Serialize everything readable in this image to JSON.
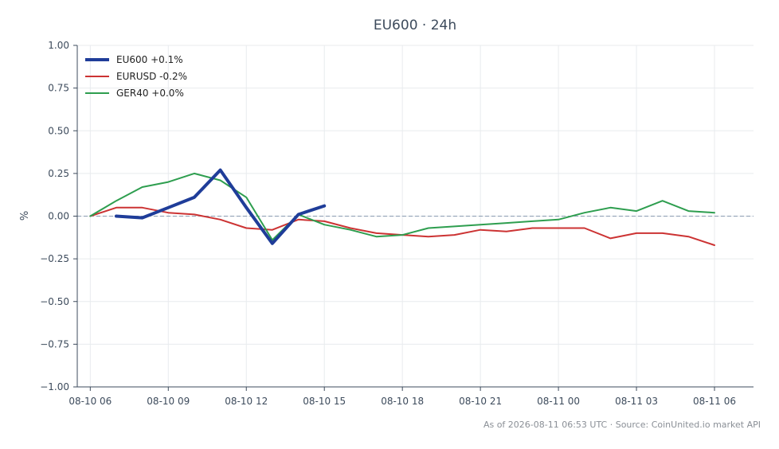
{
  "chart_data": {
    "type": "line",
    "title": "EU600 · 24h",
    "ylabel": "%",
    "xlabel": "",
    "ylim": [
      -1.0,
      1.0
    ],
    "yticks": [
      "1.00",
      "0.75",
      "0.50",
      "0.25",
      "0.00",
      "−0.25",
      "−0.50",
      "−0.75",
      "−1.00"
    ],
    "ytick_values": [
      1.0,
      0.75,
      0.5,
      0.25,
      0.0,
      -0.25,
      -0.5,
      -0.75,
      -1.0
    ],
    "x_range_hours": [
      -0.5,
      25.5
    ],
    "xticks": [
      {
        "label": "08-10 06",
        "hour": 0
      },
      {
        "label": "08-10 09",
        "hour": 3
      },
      {
        "label": "08-10 12",
        "hour": 6
      },
      {
        "label": "08-10 15",
        "hour": 9
      },
      {
        "label": "08-10 18",
        "hour": 12
      },
      {
        "label": "08-10 21",
        "hour": 15
      },
      {
        "label": "08-11 00",
        "hour": 18
      },
      {
        "label": "08-11 03",
        "hour": 21
      },
      {
        "label": "08-11 06",
        "hour": 24
      }
    ],
    "grid": true,
    "zero_line": true,
    "legend_position": "top-left",
    "series": [
      {
        "name": "EU600 +0.1%",
        "color": "#1f3d99",
        "width": 4,
        "x": [
          1,
          2,
          3,
          4,
          5,
          6,
          7,
          8,
          9
        ],
        "y": [
          0.0,
          -0.01,
          0.05,
          0.11,
          0.27,
          0.05,
          -0.16,
          0.01,
          0.06
        ]
      },
      {
        "name": "EURUSD -0.2%",
        "color": "#cc3333",
        "width": 2,
        "x": [
          0,
          1,
          2,
          3,
          4,
          5,
          6,
          7,
          8,
          9,
          10,
          11,
          12,
          13,
          14,
          15,
          16,
          17,
          18,
          19,
          20,
          21,
          22,
          23,
          24
        ],
        "y": [
          0.0,
          0.05,
          0.05,
          0.02,
          0.01,
          -0.02,
          -0.07,
          -0.08,
          -0.02,
          -0.03,
          -0.07,
          -0.1,
          -0.11,
          -0.12,
          -0.11,
          -0.08,
          -0.09,
          -0.07,
          -0.07,
          -0.07,
          -0.13,
          -0.1,
          -0.1,
          -0.12,
          -0.17
        ]
      },
      {
        "name": "GER40 +0.0%",
        "color": "#2e9e4f",
        "width": 2,
        "x": [
          0,
          1,
          2,
          3,
          4,
          5,
          6,
          7,
          8,
          9,
          10,
          11,
          12,
          13,
          14,
          15,
          16,
          17,
          18,
          19,
          20,
          21,
          22,
          23,
          24
        ],
        "y": [
          0.0,
          0.09,
          0.17,
          0.2,
          0.25,
          0.21,
          0.11,
          -0.14,
          0.01,
          -0.05,
          -0.08,
          -0.12,
          -0.11,
          -0.07,
          -0.06,
          -0.05,
          -0.04,
          -0.03,
          -0.02,
          0.02,
          0.05,
          0.03,
          0.09,
          0.03,
          0.02
        ]
      }
    ]
  },
  "footer": "As of 2026-08-11 06:53 UTC · Source: CoinUnited.io market API"
}
